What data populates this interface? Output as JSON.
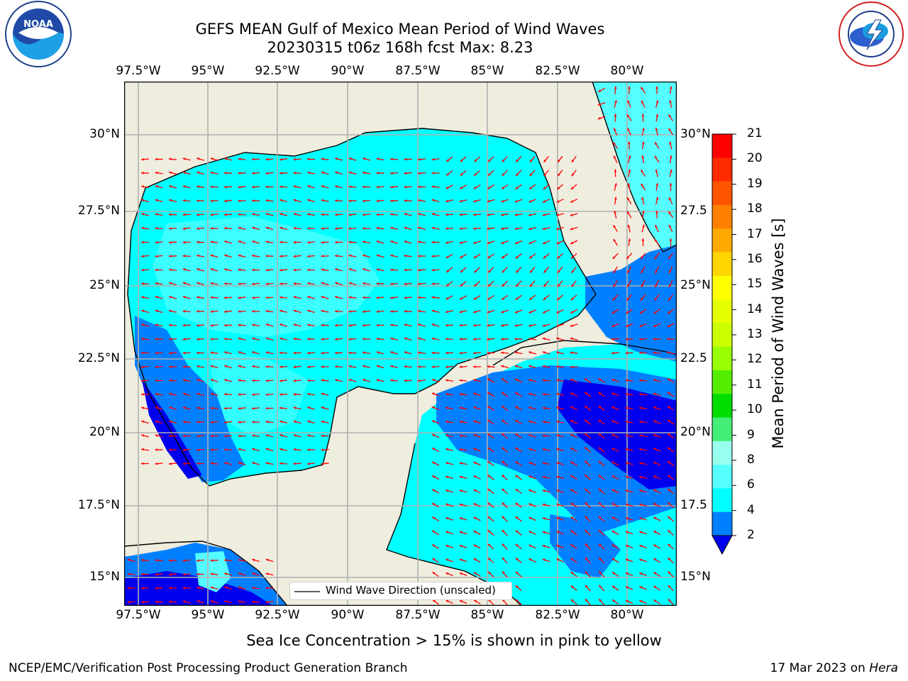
{
  "header": {
    "title_line1": "GEFS MEAN Gulf of Mexico Mean Period of Wind Waves",
    "title_line2": "20230315 t06z 168h fcst   Max: 8.23"
  },
  "logos": {
    "left": "noaa-logo",
    "right": "national-weather-service-logo"
  },
  "map": {
    "top_lon_labels": [
      "97.5°W",
      "95°W",
      "92.5°W",
      "90°W",
      "87.5°W",
      "85°W",
      "82.5°W",
      "80°W"
    ],
    "bottom_lon_labels": [
      "97.5°W",
      "95°W",
      "92.5°W",
      "90°W",
      "87.5°W",
      "85°W",
      "82.5°W",
      "80°W"
    ],
    "left_lat_labels": [
      "30°N",
      "27.5°N",
      "25°N",
      "22.5°N",
      "20°N",
      "17.5°N",
      "15°N"
    ],
    "right_lat_labels": [
      "30°N",
      "27.5",
      "25°N",
      "22.5",
      "20°N",
      "17.5",
      "15°N"
    ],
    "legend_label": "Wind Wave Direction (unscaled)",
    "land_color": "#efedde",
    "arrow_color": "#ff0000"
  },
  "colorbar": {
    "title": "Mean Period of Wind Waves [s]",
    "ticks": [
      "21",
      "20",
      "19",
      "18",
      "17",
      "16",
      "15",
      "14",
      "13",
      "12",
      "11",
      "10",
      "9",
      "8",
      "6",
      "4",
      "2"
    ],
    "colors": [
      "#ff0000",
      "#ff2a00",
      "#ff5500",
      "#ff8000",
      "#ffaa00",
      "#ffd500",
      "#ffff00",
      "#e6ff00",
      "#ccff00",
      "#99ff00",
      "#55ee00",
      "#00dd00",
      "#44ee77",
      "#99ffee",
      "#55ffff",
      "#00ffff",
      "#0080ff",
      "#0000ee"
    ]
  },
  "footer": {
    "sea_ice_note": "Sea Ice Concentration > 15% is shown in pink to yellow",
    "credit": "NCEP/EMC/Verification Post Processing Product Generation Branch",
    "date": "17 Mar 2023 on",
    "host": "Hera"
  }
}
